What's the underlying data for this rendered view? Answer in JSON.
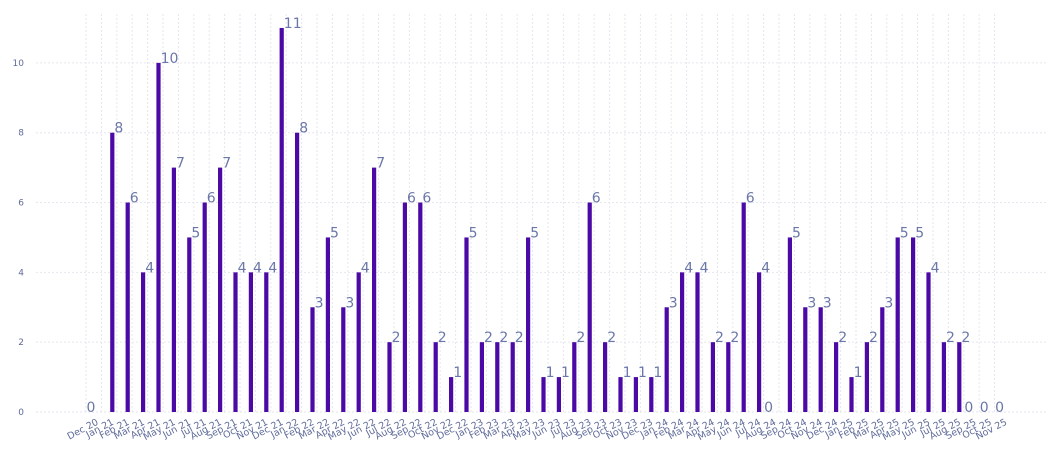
{
  "chart_data": {
    "type": "bar",
    "bar_color": "#4b0aa6",
    "label_color": "#6b77a8",
    "grid": true,
    "ylim": [
      0,
      11.4
    ],
    "yticks": [
      0,
      2,
      4,
      6,
      8,
      10
    ],
    "categories": [
      "Dec 20",
      "Jan 21",
      "Feb 21",
      "Mar 21",
      "Apr 21",
      "May 21",
      "Jun 21",
      "Jul 21",
      "Aug 21",
      "Sep 21",
      "Oct 21",
      "Nov 21",
      "Dec 21",
      "Jan 22",
      "Feb 22",
      "Mar 22",
      "Apr 22",
      "May 22",
      "Jun 22",
      "Jul 22",
      "Aug 22",
      "Sep 22",
      "Oct 22",
      "Nov 22",
      "Dec 22",
      "Jan 23",
      "Feb 23",
      "Mar 23",
      "Apr 23",
      "May 23",
      "Jun 23",
      "Jul 23",
      "Aug 23",
      "Sep 23",
      "Oct 23",
      "Nov 23",
      "Dec 23",
      "Jan 24",
      "Feb 24",
      "Mar 24",
      "Apr 24",
      "May 24",
      "Jun 24",
      "Jul 24",
      "Aug 24",
      "Sep 24",
      "Oct 24",
      "Nov 24",
      "Dec 24",
      "Jan 25",
      "Feb 25",
      "Mar 25",
      "Apr 25",
      "May 25",
      "Jun 25",
      "Jul 25",
      "Aug 25",
      "Sep 25",
      "Oct 25",
      "Nov 25"
    ],
    "values": [
      0,
      8,
      6,
      4,
      10,
      7,
      5,
      6,
      7,
      4,
      4,
      4,
      11,
      8,
      3,
      5,
      3,
      4,
      7,
      2,
      6,
      6,
      2,
      1,
      5,
      2,
      2,
      2,
      5,
      1,
      1,
      2,
      6,
      2,
      1,
      1,
      1,
      3,
      4,
      4,
      2,
      2,
      6,
      4,
      0,
      5,
      3,
      3,
      2,
      1,
      2,
      3,
      5,
      5,
      4,
      2,
      2,
      0,
      0,
      0
    ]
  }
}
